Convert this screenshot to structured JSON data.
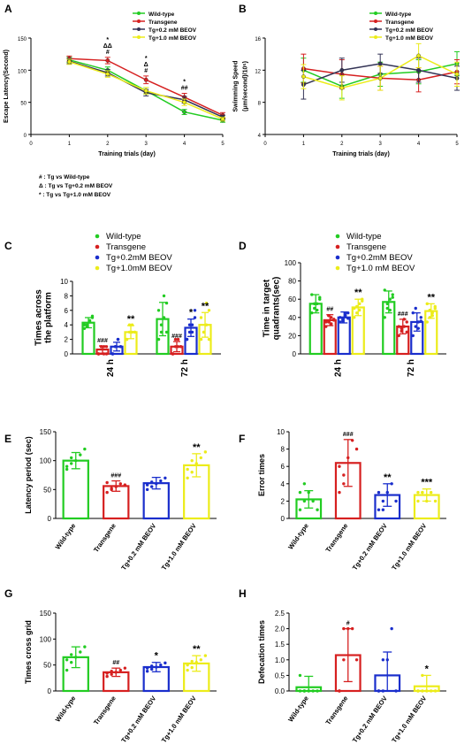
{
  "figure": {
    "panels": [
      {
        "letter": "A"
      },
      {
        "letter": "B"
      },
      {
        "letter": "C"
      },
      {
        "letter": "D"
      },
      {
        "letter": "E"
      },
      {
        "letter": "F"
      },
      {
        "letter": "G"
      },
      {
        "letter": "H"
      }
    ],
    "footnotes": [
      "# : Tg vs Wild-type",
      "Δ : Tg vs Tg+0.2 mM BEOV",
      "* : Tg vs Tg+1.0 mM  BEOV"
    ]
  },
  "colors": {
    "wild": "#22cc22",
    "tg": "#d62020",
    "tg02": "#1a2ecc",
    "tg10": "#ecec1a",
    "line_tg02": "#333355"
  },
  "chart_data": [
    {
      "id": "A",
      "type": "line",
      "ylabel": "Escape Latency(Second)",
      "xlabel": "Training trials (day)",
      "xlim": [
        0,
        5
      ],
      "ylim": [
        0,
        150
      ],
      "xticks": [
        "0",
        "1",
        "2",
        "3",
        "4",
        "5"
      ],
      "yticks": [
        "0",
        "50",
        "100",
        "150"
      ],
      "x": [
        1,
        2,
        3,
        4,
        5
      ],
      "series": [
        {
          "name": "Wild-type",
          "values": [
            116,
            100,
            68,
            35,
            22
          ],
          "err": [
            4,
            5,
            5,
            4,
            3
          ],
          "color": "#22cc22"
        },
        {
          "name": "Transgene",
          "values": [
            118,
            115,
            85,
            58,
            30
          ],
          "err": [
            4,
            5,
            6,
            6,
            4
          ],
          "color": "#d62020"
        },
        {
          "name": "Tg+0.2 mM BEOV",
          "values": [
            114,
            96,
            65,
            54,
            27
          ],
          "err": [
            4,
            5,
            5,
            5,
            3
          ],
          "color": "#333355"
        },
        {
          "name": "Tg+1.0 mM  BEOV",
          "values": [
            113,
            94,
            68,
            50,
            24
          ],
          "err": [
            4,
            5,
            5,
            5,
            3
          ],
          "color": "#ecec1a"
        }
      ],
      "annotations": [
        {
          "x": 2,
          "lines": [
            "*",
            "ΔΔ",
            "#"
          ]
        },
        {
          "x": 3,
          "lines": [
            "*",
            "Δ",
            "#"
          ]
        },
        {
          "x": 4,
          "lines": [
            "*",
            "##"
          ]
        }
      ]
    },
    {
      "id": "B",
      "type": "line",
      "ylabel": "Swimming Speed\n(μm/second)/10⁵)",
      "xlabel": "Training trials (day)",
      "xlim": [
        0,
        5
      ],
      "ylim": [
        4,
        16
      ],
      "xticks": [
        "0",
        "1",
        "2",
        "3",
        "4",
        "5"
      ],
      "yticks": [
        "4",
        "8",
        "12",
        "16"
      ],
      "x": [
        1,
        2,
        3,
        4,
        5
      ],
      "series": [
        {
          "name": "Wild-type",
          "values": [
            12,
            10,
            11.5,
            11.8,
            12.8
          ],
          "err": [
            1.5,
            1.5,
            1.5,
            1.5,
            1.5
          ],
          "color": "#22cc22"
        },
        {
          "name": "Transgene",
          "values": [
            12.2,
            11.5,
            11,
            10.8,
            11.8
          ],
          "err": [
            1.8,
            1.8,
            1.5,
            1.5,
            1.5
          ],
          "color": "#d62020"
        },
        {
          "name": "Tg+0.2 mM BEOV",
          "values": [
            10.2,
            12,
            12.8,
            12,
            11
          ],
          "err": [
            1.8,
            1.5,
            1.2,
            1.5,
            1.5
          ],
          "color": "#333355"
        },
        {
          "name": "Tg+1.0 mM BEOV",
          "values": [
            11.2,
            9.8,
            11,
            13.8,
            11.5
          ],
          "err": [
            1.5,
            1.5,
            1.5,
            1.5,
            1.5
          ],
          "color": "#ecec1a"
        }
      ]
    },
    {
      "id": "C",
      "type": "bar",
      "ylabel": "Times across\nthe platform",
      "ylim": [
        0,
        10
      ],
      "yticks": [
        "0",
        "2",
        "4",
        "6",
        "8",
        "10"
      ],
      "categories": [
        "24 h",
        "72 h"
      ],
      "series": [
        {
          "name": "Wild-type",
          "values": [
            4.3,
            4.8
          ],
          "err": [
            0.7,
            2.3
          ],
          "color": "#22cc22"
        },
        {
          "name": "Transgene",
          "values": [
            0.6,
            1.0
          ],
          "err": [
            0.5,
            0.7
          ],
          "color": "#d62020"
        },
        {
          "name": "Tg+0.2mM BEOV",
          "values": [
            1.0,
            3.6
          ],
          "err": [
            0.6,
            1.2
          ],
          "color": "#1a2ecc"
        },
        {
          "name": "Tg+1.0mM BEOV",
          "values": [
            3.0,
            4.0
          ],
          "err": [
            0.9,
            1.7
          ],
          "color": "#ecec1a"
        }
      ],
      "points": [
        [
          [
            3.5,
            4,
            4.5,
            5,
            4,
            3.8,
            4.6,
            5.2
          ],
          [
            0,
            1,
            0,
            1,
            0,
            1,
            1,
            0
          ],
          [
            0,
            1,
            2,
            1,
            0,
            1,
            2,
            1
          ],
          [
            2,
            3,
            4,
            3,
            2,
            4,
            3,
            3
          ]
        ],
        [
          [
            2,
            3,
            5,
            7,
            6,
            4,
            8,
            3
          ],
          [
            0,
            1,
            2,
            1,
            0,
            2,
            1,
            1
          ],
          [
            2,
            3,
            4,
            5,
            2,
            4,
            3,
            6
          ],
          [
            2,
            3,
            4,
            6,
            5,
            3,
            7,
            2
          ]
        ]
      ],
      "sig": [
        [
          "",
          "###",
          "",
          "**"
        ],
        [
          "",
          "###",
          "*",
          "**"
        ]
      ]
    },
    {
      "id": "D",
      "type": "bar",
      "ylabel": "Time in target\nquadrants(sec)",
      "ylim": [
        0,
        100
      ],
      "yticks": [
        "0",
        "20",
        "40",
        "60",
        "80",
        "100"
      ],
      "categories": [
        "24 h",
        "72 h"
      ],
      "series": [
        {
          "name": "Wild-type",
          "values": [
            55,
            57
          ],
          "err": [
            10,
            12
          ],
          "color": "#22cc22"
        },
        {
          "name": "Transgene",
          "values": [
            37,
            30
          ],
          "err": [
            6,
            8
          ],
          "color": "#d62020"
        },
        {
          "name": "Tg+0.2mM BEOV",
          "values": [
            40,
            35
          ],
          "err": [
            6,
            10
          ],
          "color": "#1a2ecc"
        },
        {
          "name": "Tg+1.0 mM BEOV",
          "values": [
            51,
            47
          ],
          "err": [
            9,
            8
          ],
          "color": "#ecec1a"
        }
      ],
      "points": [
        [
          [
            45,
            50,
            55,
            60,
            65,
            55,
            48,
            62
          ],
          [
            30,
            35,
            40,
            38,
            35,
            42,
            33,
            37
          ],
          [
            35,
            38,
            42,
            45,
            40,
            36,
            44,
            39
          ],
          [
            40,
            45,
            55,
            60,
            50,
            52,
            48,
            58
          ]
        ],
        [
          [
            40,
            50,
            60,
            65,
            70,
            55,
            48,
            62
          ],
          [
            20,
            25,
            30,
            35,
            30,
            28,
            38,
            24
          ],
          [
            20,
            30,
            35,
            40,
            45,
            50,
            28,
            36
          ],
          [
            35,
            40,
            45,
            50,
            55,
            48,
            42,
            52
          ]
        ]
      ],
      "sig": [
        [
          "",
          "##",
          "",
          "**"
        ],
        [
          "",
          "###",
          "",
          "**"
        ]
      ]
    },
    {
      "id": "E",
      "type": "bar",
      "ylabel": "Latency period (sec)",
      "ylim": [
        0,
        150
      ],
      "yticks": [
        "0",
        "50",
        "100",
        "150"
      ],
      "categories": [
        "Wild-type",
        "Transgene",
        "Tg+0.2 mM BEOV",
        "Tg+1.0 mM BEOV"
      ],
      "values": [
        100,
        56,
        61,
        92
      ],
      "err": [
        14,
        9,
        10,
        20
      ],
      "colors": [
        "#22cc22",
        "#d62020",
        "#1a2ecc",
        "#ecec1a"
      ],
      "points": [
        [
          85,
          95,
          100,
          110,
          120,
          90,
          105
        ],
        [
          45,
          50,
          55,
          60,
          58,
          62,
          52
        ],
        [
          50,
          55,
          60,
          65,
          70,
          58,
          63
        ],
        [
          70,
          80,
          95,
          105,
          115,
          85,
          100
        ]
      ],
      "sig": [
        "",
        "###",
        "",
        "**"
      ]
    },
    {
      "id": "F",
      "type": "bar",
      "ylabel": "Error times",
      "ylim": [
        0,
        10
      ],
      "yticks": [
        "0",
        "2",
        "4",
        "6",
        "8",
        "10"
      ],
      "categories": [
        "Wild-type",
        "Transgene",
        "Tg+0.2 mM BEOV",
        "Tg+1.0 mM BEOV"
      ],
      "values": [
        2.2,
        6.4,
        2.7,
        2.7
      ],
      "err": [
        1.0,
        2.7,
        1.3,
        0.7
      ],
      "colors": [
        "#22cc22",
        "#d62020",
        "#1a2ecc",
        "#ecec1a"
      ],
      "points": [
        [
          1,
          2,
          3,
          2,
          1,
          3,
          4
        ],
        [
          3,
          5,
          7,
          9,
          8,
          6,
          4
        ],
        [
          1,
          2,
          3,
          4,
          2,
          3,
          1
        ],
        [
          2,
          3,
          2,
          3,
          2,
          3,
          3
        ]
      ],
      "sig": [
        "",
        "###",
        "**",
        "***"
      ]
    },
    {
      "id": "G",
      "type": "bar",
      "ylabel": "Times cross grid",
      "ylim": [
        0,
        150
      ],
      "yticks": [
        "0",
        "50",
        "100",
        "150"
      ],
      "categories": [
        "Wild-type",
        "Transgene",
        "Tg+0.2 mM BEOV",
        "Tg+1.0 mM BEOV"
      ],
      "values": [
        65,
        36,
        46,
        53
      ],
      "err": [
        20,
        8,
        9,
        15
      ],
      "colors": [
        "#22cc22",
        "#d62020",
        "#1a2ecc",
        "#ecec1a"
      ],
      "points": [
        [
          40,
          55,
          65,
          75,
          85,
          60,
          70
        ],
        [
          28,
          32,
          36,
          40,
          44,
          34,
          38
        ],
        [
          38,
          42,
          46,
          50,
          54,
          44,
          48
        ],
        [
          40,
          45,
          55,
          60,
          68,
          50,
          57
        ]
      ],
      "sig": [
        "",
        "##",
        "*",
        "**"
      ]
    },
    {
      "id": "H",
      "type": "bar",
      "ylabel": "Defecation times",
      "ylim": [
        0,
        2.5
      ],
      "yticks": [
        "0.0",
        "0.5",
        "1.0",
        "1.5",
        "2.0",
        "2.5"
      ],
      "categories": [
        "Wild-type",
        "Transgene",
        "Tg+0.2 mM BEOV",
        "Tg+1.0 mM BEOV"
      ],
      "values": [
        0.12,
        1.15,
        0.5,
        0.15
      ],
      "err": [
        0.35,
        0.85,
        0.75,
        0.35
      ],
      "colors": [
        "#22cc22",
        "#d62020",
        "#1a2ecc",
        "#ecec1a"
      ],
      "points": [
        [
          0,
          0,
          0,
          0,
          0,
          0.5,
          0
        ],
        [
          0,
          1,
          2,
          2,
          1,
          0,
          2
        ],
        [
          0,
          0,
          1,
          2,
          0,
          0,
          1
        ],
        [
          0,
          0,
          0,
          0,
          0,
          0,
          0.5
        ]
      ],
      "sig": [
        "",
        "#",
        "",
        "*"
      ]
    }
  ]
}
